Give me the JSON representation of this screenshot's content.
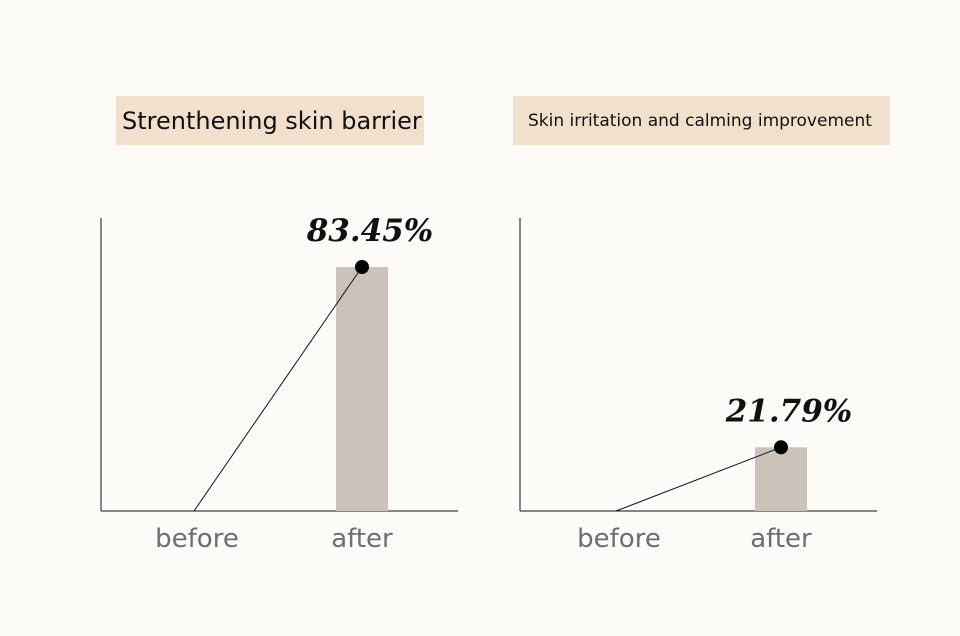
{
  "chart_data": [
    {
      "type": "bar",
      "title": "Strenthening skin barrier",
      "categories": [
        "before",
        "after"
      ],
      "values": [
        0,
        83.45
      ],
      "value_labels": [
        "",
        "83.45%"
      ],
      "ylim": [
        0,
        100
      ],
      "xlabel": "",
      "ylabel": "",
      "grid": false,
      "colors": {
        "bar": "#cbc3ba",
        "marker": "#000000",
        "title_bg": "#f1e1cc"
      }
    },
    {
      "type": "bar",
      "title": "Skin irritation and calming improvement",
      "categories": [
        "before",
        "after"
      ],
      "values": [
        0,
        21.79
      ],
      "value_labels": [
        "",
        "21.79%"
      ],
      "ylim": [
        0,
        100
      ],
      "xlabel": "",
      "ylabel": "",
      "grid": false,
      "colors": {
        "bar": "#cbc3ba",
        "marker": "#000000",
        "title_bg": "#f1e1cc"
      }
    }
  ]
}
